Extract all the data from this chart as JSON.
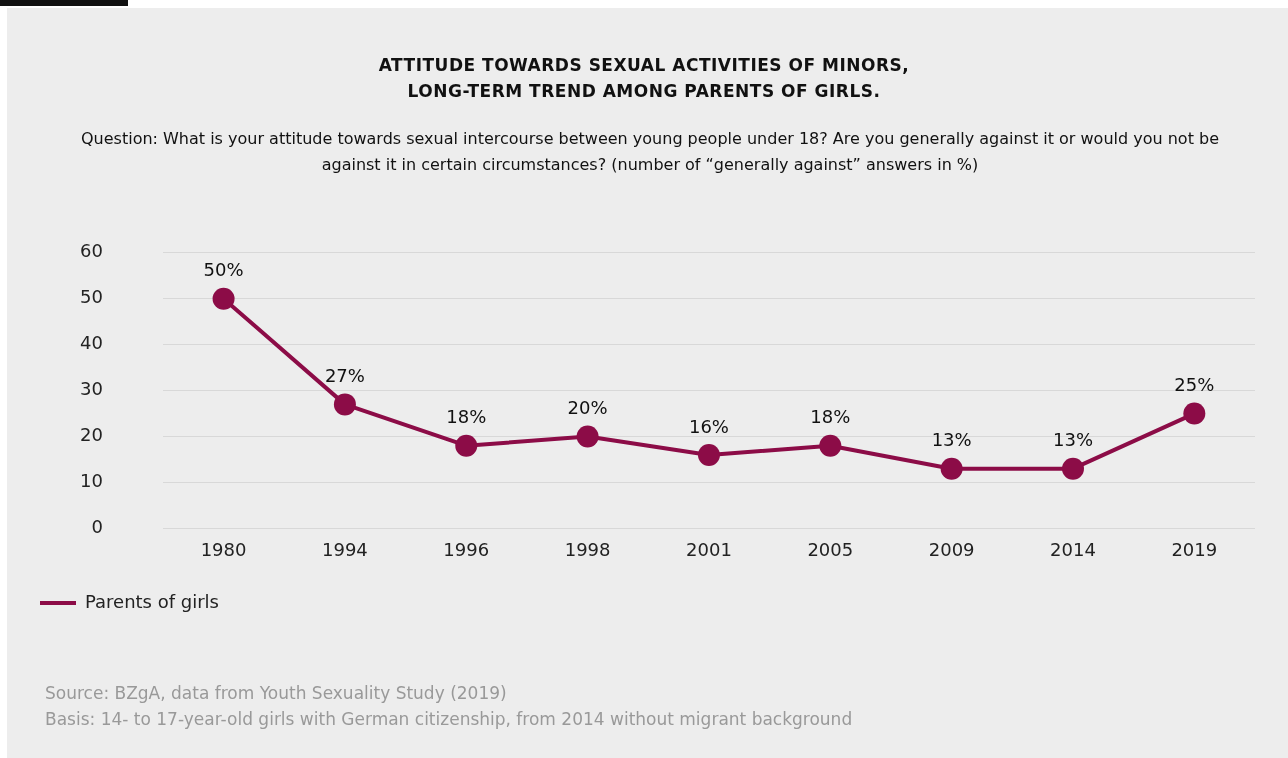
{
  "chart_data": {
    "type": "line",
    "title": "ATTITUDE TOWARDS SEXUAL ACTIVITIES OF MINORS,\nLONG-TERM TREND AMONG PARENTS OF GIRLS.",
    "subtitle": "Question: What is your attitude towards sexual intercourse between young people under 18? Are you generally against it or would you not be against it in certain circumstances? (number of “generally against” answers in %)",
    "categories": [
      "1980",
      "1994",
      "1996",
      "1998",
      "2001",
      "2005",
      "2009",
      "2014",
      "2019"
    ],
    "series": [
      {
        "name": "Parents of girls",
        "color": "#8c0c47",
        "values": [
          50,
          27,
          18,
          20,
          16,
          18,
          13,
          13,
          25
        ],
        "value_labels": [
          "50%",
          "27%",
          "18%",
          "20%",
          "16%",
          "18%",
          "13%",
          "13%",
          "25%"
        ]
      }
    ],
    "ylim": [
      0,
      60
    ],
    "yticks": [
      0,
      10,
      20,
      30,
      40,
      50,
      60
    ],
    "grid": "y",
    "legend": "bottom left",
    "marker": "circle",
    "line_style": "solid",
    "annotations": [
      "Source: BZgA, data from Youth Sexuality Study (2019)",
      "Basis: 14- to 17-year-old girls with German citizenship, from 2014 without migrant background"
    ]
  }
}
